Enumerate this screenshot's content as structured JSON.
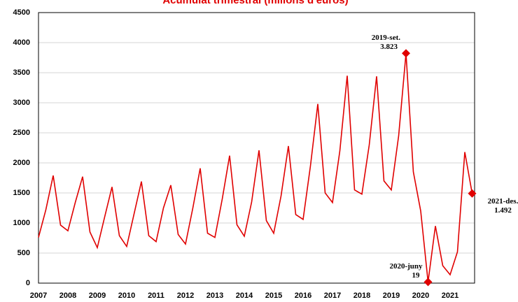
{
  "chart_data": {
    "type": "line",
    "title": "Acumulat trimestral (milions d'euros)",
    "categories": [
      "2007",
      null,
      null,
      null,
      "2008",
      null,
      null,
      null,
      "2009",
      null,
      null,
      null,
      "2010",
      null,
      null,
      null,
      "2011",
      null,
      null,
      null,
      "2012",
      null,
      null,
      null,
      "2013",
      null,
      null,
      null,
      "2014",
      null,
      null,
      null,
      "2015",
      null,
      null,
      null,
      "2016",
      null,
      null,
      null,
      "2017",
      null,
      null,
      null,
      "2018",
      null,
      null,
      null,
      "2019",
      null,
      null,
      null,
      "2020",
      null,
      null,
      null,
      "2021",
      null,
      null,
      null
    ],
    "series": [
      {
        "color": "#e00000",
        "values": [
          760,
          1220,
          1790,
          965,
          870,
          1340,
          1770,
          850,
          590,
          1100,
          1600,
          790,
          610,
          1150,
          1690,
          790,
          690,
          1250,
          1630,
          810,
          650,
          1250,
          1910,
          830,
          760,
          1400,
          2120,
          970,
          780,
          1350,
          2210,
          1040,
          830,
          1450,
          2280,
          1140,
          1060,
          1950,
          2980,
          1500,
          1340,
          2200,
          3450,
          1550,
          1480,
          2300,
          3440,
          1700,
          1550,
          2450,
          3823,
          1850,
          1200,
          19,
          950,
          290,
          140,
          520,
          2180,
          1492
        ],
        "point_labels": [
          null,
          null,
          null,
          null,
          null,
          null,
          null,
          null,
          null,
          null,
          null,
          null,
          null,
          null,
          null,
          null,
          null,
          null,
          null,
          null,
          null,
          null,
          null,
          null,
          null,
          null,
          null,
          null,
          null,
          null,
          null,
          null,
          null,
          null,
          null,
          null,
          null,
          null,
          null,
          null,
          null,
          null,
          null,
          null,
          null,
          null,
          null,
          null,
          null,
          null,
          "2019-set.",
          null,
          null,
          "2020-juny",
          null,
          null,
          null,
          null,
          null,
          "2021-des."
        ],
        "value_labels": [
          null,
          null,
          null,
          null,
          null,
          null,
          null,
          null,
          null,
          null,
          null,
          null,
          null,
          null,
          null,
          null,
          null,
          null,
          null,
          null,
          null,
          null,
          null,
          null,
          null,
          null,
          null,
          null,
          null,
          null,
          null,
          null,
          null,
          null,
          null,
          null,
          null,
          null,
          null,
          null,
          null,
          null,
          null,
          null,
          null,
          null,
          null,
          null,
          null,
          null,
          "3.823",
          null,
          null,
          "19",
          null,
          null,
          null,
          null,
          null,
          "1.492"
        ]
      }
    ],
    "ylim": [
      0,
      4500
    ],
    "yticks": [
      0,
      500,
      1000,
      1500,
      2000,
      2500,
      3000,
      3500,
      4000,
      4500
    ],
    "grid": true
  }
}
